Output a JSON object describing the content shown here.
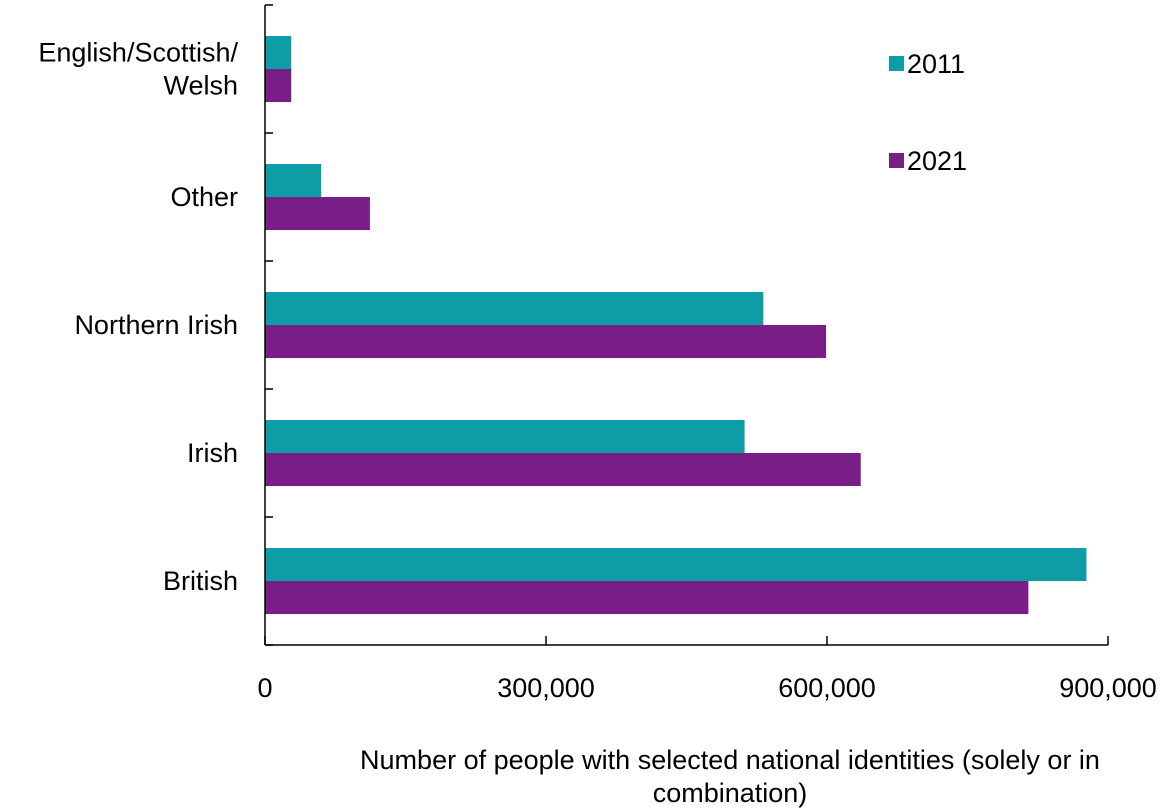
{
  "chart_data": {
    "type": "bar",
    "orientation": "horizontal",
    "categories": [
      "English/Scottish/Welsh",
      "Other",
      "Northern Irish",
      "Irish",
      "British"
    ],
    "category_label_lines": [
      [
        "English/Scottish/",
        "Welsh"
      ],
      [
        "Other"
      ],
      [
        "Northern Irish"
      ],
      [
        "Irish"
      ],
      [
        "British"
      ]
    ],
    "series": [
      {
        "name": "2011",
        "color": "#0E9DA5",
        "values": [
          28000,
          60000,
          532000,
          512000,
          877000
        ]
      },
      {
        "name": "2021",
        "color": "#7A1E87",
        "values": [
          28000,
          112000,
          599000,
          636000,
          815000
        ]
      }
    ],
    "xlim": [
      0,
      900000
    ],
    "xticks": [
      0,
      300000,
      600000,
      900000
    ],
    "xtick_labels": [
      "0",
      "300,000",
      "600,000",
      "900,000"
    ],
    "xlabel_lines": [
      "Number of people with selected national identities (solely or in",
      "combination)"
    ],
    "ylabel": "",
    "title": "",
    "grid": false,
    "legend_position": "top-right"
  }
}
